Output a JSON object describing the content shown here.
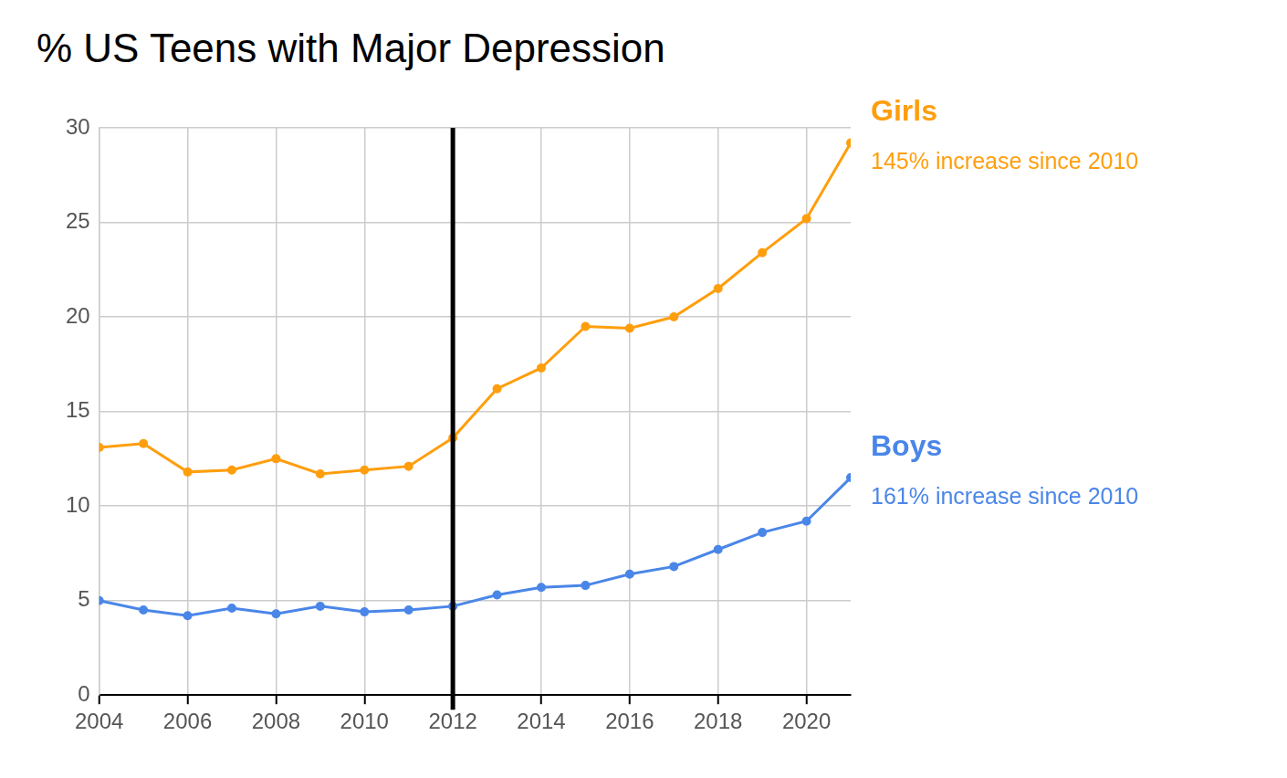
{
  "chart_data": {
    "type": "line",
    "title": "% US Teens with Major Depression",
    "x": [
      2004,
      2005,
      2006,
      2007,
      2008,
      2009,
      2010,
      2011,
      2012,
      2013,
      2014,
      2015,
      2016,
      2017,
      2018,
      2019,
      2020,
      2021
    ],
    "series": [
      {
        "name": "Girls",
        "color": "#ff9e0d",
        "annotation": "145% increase since 2010",
        "values": [
          13.1,
          13.3,
          11.8,
          11.9,
          12.5,
          11.7,
          11.9,
          12.1,
          13.6,
          16.2,
          17.3,
          19.5,
          19.4,
          20.0,
          21.5,
          23.4,
          25.2,
          29.2
        ]
      },
      {
        "name": "Boys",
        "color": "#4a86e8",
        "annotation": "161% increase since 2010",
        "values": [
          5.0,
          4.5,
          4.2,
          4.6,
          4.3,
          4.7,
          4.4,
          4.5,
          4.7,
          5.3,
          5.7,
          5.8,
          6.4,
          6.8,
          7.7,
          8.6,
          9.2,
          11.5
        ]
      }
    ],
    "xlim": [
      2004,
      2021
    ],
    "xticks": [
      2004,
      2006,
      2008,
      2010,
      2012,
      2014,
      2016,
      2018,
      2020
    ],
    "ylim": [
      0,
      30
    ],
    "yticks": [
      0,
      5,
      10,
      15,
      20,
      25,
      30
    ],
    "grid": true,
    "marker": "circle",
    "reference_lines": [
      {
        "x": 2012,
        "color": "#000000"
      }
    ]
  }
}
